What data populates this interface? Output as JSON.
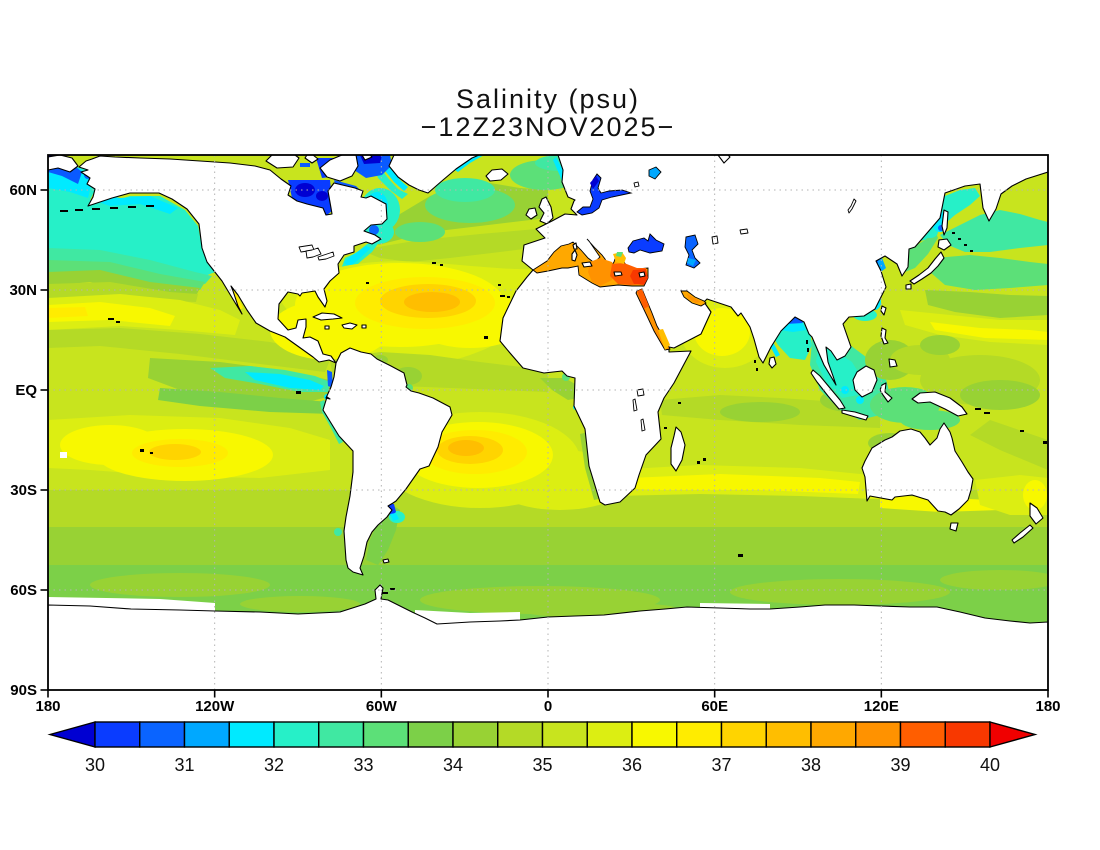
{
  "title": {
    "line1": "Salinity (psu)",
    "line2": "−12Z23NOV2025−"
  },
  "chart_data": {
    "type": "heatmap",
    "variable": "Sea surface salinity",
    "units": "psu",
    "valid_time": "12Z 23 Nov 2025",
    "projection": "equirectangular world map, 180W to 180E, approx 70N to 90S",
    "grid": "dotted graticule every 30 degrees latitude and longitude",
    "x_axis": {
      "ticks": [
        {
          "label": "180",
          "lon": -180
        },
        {
          "label": "120W",
          "lon": -120
        },
        {
          "label": "60W",
          "lon": -60
        },
        {
          "label": "0",
          "lon": 0
        },
        {
          "label": "60E",
          "lon": 60
        },
        {
          "label": "120E",
          "lon": 120
        },
        {
          "label": "180",
          "lon": 180
        }
      ]
    },
    "y_axis": {
      "ticks": [
        {
          "label": "60N",
          "lat": 60
        },
        {
          "label": "30N",
          "lat": 30
        },
        {
          "label": "EQ",
          "lat": 0
        },
        {
          "label": "30S",
          "lat": -30
        },
        {
          "label": "60S",
          "lat": -60
        },
        {
          "label": "90S",
          "lat": -90
        }
      ]
    },
    "colorbar": {
      "min": 30,
      "max": 40,
      "interval": 0.5,
      "arrow_low": true,
      "arrow_high": true,
      "tick_labels": [
        "30",
        "31",
        "32",
        "33",
        "34",
        "35",
        "36",
        "37",
        "38",
        "39",
        "40"
      ],
      "colors": [
        "#0000d2",
        "#0a3cff",
        "#0a64ff",
        "#00a8ff",
        "#00eaff",
        "#26f0c8",
        "#40e8a2",
        "#5ce078",
        "#7cd048",
        "#98d234",
        "#b4da26",
        "#c8e41e",
        "#dcee12",
        "#f8f800",
        "#ffec00",
        "#ffd400",
        "#ffbe00",
        "#ffa800",
        "#ff9200",
        "#ff5e00",
        "#f83800",
        "#f00000"
      ]
    },
    "regions": [
      {
        "name": "North Atlantic subtropical gyre",
        "psu": 37.5
      },
      {
        "name": "South Atlantic subtropical gyre",
        "psu": 37.5
      },
      {
        "name": "South Pacific subtropical gyre",
        "psu": 37
      },
      {
        "name": "Mediterranean Sea (west)",
        "psu": 38
      },
      {
        "name": "Mediterranean Sea (east)",
        "psu": 39.5
      },
      {
        "name": "Red Sea (north)",
        "psu": 40
      },
      {
        "name": "Persian Gulf",
        "psu": 38.5
      },
      {
        "name": "Arabian Sea",
        "psu": 36.5
      },
      {
        "name": "Bay of Bengal (north)",
        "psu": 30.5
      },
      {
        "name": "Black Sea",
        "psu": 30.5
      },
      {
        "name": "Baltic Sea",
        "psu": 30
      },
      {
        "name": "Hudson Bay",
        "psu": 30
      },
      {
        "name": "Bering Sea / Arctic margin",
        "psu": 31
      },
      {
        "name": "North Pacific subpolar gyre",
        "psu": 32.5
      },
      {
        "name": "Eastern equatorial Pacific fresh pool",
        "psu": 32.5
      },
      {
        "name": "Northwest Atlantic shelf / Labrador Sea",
        "psu": 32
      },
      {
        "name": "Rio de la Plata plume",
        "psu": 30
      },
      {
        "name": "Tropical Atlantic ITCZ band",
        "psu": 35
      },
      {
        "name": "Indian Ocean subtropics",
        "psu": 36
      },
      {
        "name": "Southern Ocean 50S-65S",
        "psu": 34
      },
      {
        "name": "Mid-ocean background",
        "psu": 35
      }
    ]
  }
}
